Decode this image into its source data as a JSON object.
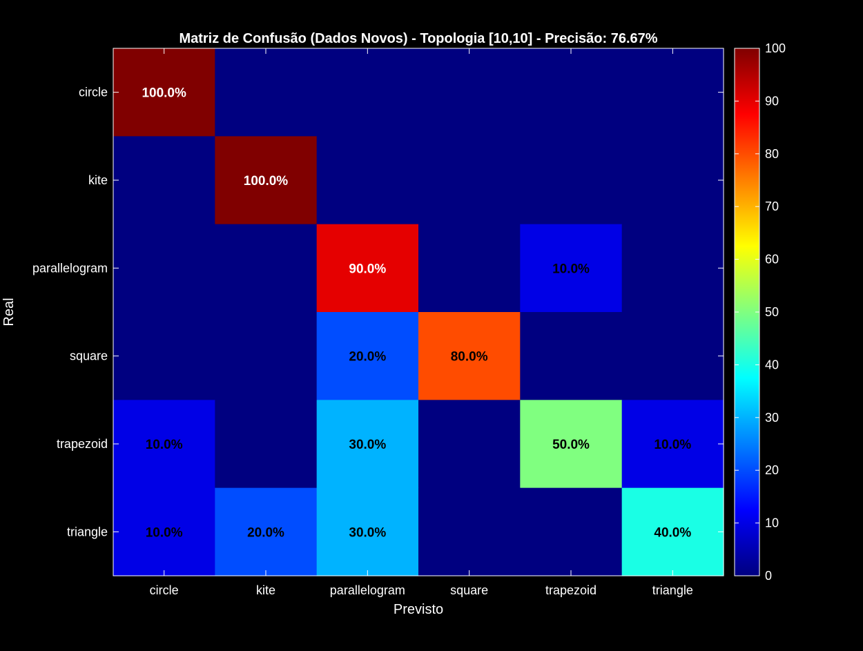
{
  "chart_data": {
    "type": "heatmap",
    "title": "Matriz de Confusão (Dados Novos) - Topologia [10,10] - Precisão: 76.67%",
    "xlabel": "Previsto",
    "ylabel": "Real",
    "x_categories": [
      "circle",
      "kite",
      "parallelogram",
      "square",
      "trapezoid",
      "triangle"
    ],
    "y_categories": [
      "circle",
      "kite",
      "parallelogram",
      "square",
      "trapezoid",
      "triangle"
    ],
    "values": [
      [
        100,
        0,
        0,
        0,
        0,
        0
      ],
      [
        0,
        100,
        0,
        0,
        0,
        0
      ],
      [
        0,
        0,
        90,
        0,
        10,
        0
      ],
      [
        0,
        0,
        20,
        80,
        0,
        0
      ],
      [
        10,
        0,
        30,
        0,
        50,
        10
      ],
      [
        10,
        20,
        30,
        0,
        0,
        40
      ]
    ],
    "cell_labels": [
      [
        "100.0%",
        "",
        "",
        "",
        "",
        ""
      ],
      [
        "",
        "100.0%",
        "",
        "",
        "",
        ""
      ],
      [
        "",
        "",
        "90.0%",
        "",
        "10.0%",
        ""
      ],
      [
        "",
        "",
        "20.0%",
        "80.0%",
        "",
        ""
      ],
      [
        "10.0%",
        "",
        "30.0%",
        "",
        "50.0%",
        "10.0%"
      ],
      [
        "10.0%",
        "20.0%",
        "30.0%",
        "",
        "",
        "40.0%"
      ]
    ],
    "colormap": "jet",
    "clim": [
      0,
      100
    ],
    "colorbar_ticks": [
      "0",
      "10",
      "20",
      "30",
      "40",
      "50",
      "60",
      "70",
      "80",
      "90",
      "100"
    ],
    "background_color": "#000000",
    "axes_color": "#ffffff",
    "grid": false
  }
}
